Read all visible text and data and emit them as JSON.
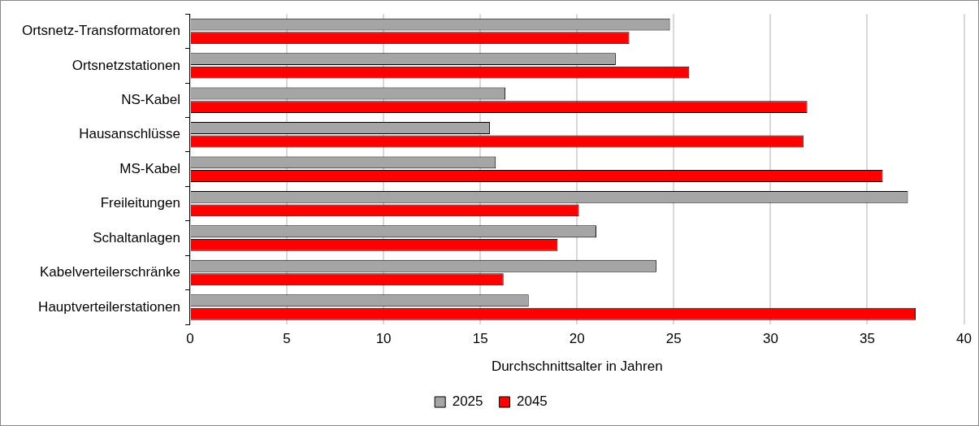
{
  "chart_data": {
    "type": "bar",
    "orientation": "horizontal",
    "xlabel": "Durchschnittsalter in Jahren",
    "categories": [
      "Ortsnetz-Transformatoren",
      "Ortsnetzstationen",
      "NS-Kabel",
      "Hausanschlüsse",
      "MS-Kabel",
      "Freileitungen",
      "Schaltanlagen",
      "Kabelverteilerschränke",
      "Hauptverteilerstationen"
    ],
    "series": [
      {
        "name": "2025",
        "color": "#a5a5a5",
        "values": [
          24.8,
          22.0,
          16.3,
          15.5,
          15.8,
          37.1,
          21.0,
          24.1,
          17.5
        ]
      },
      {
        "name": "2045",
        "color": "#ff0000",
        "values": [
          22.7,
          25.8,
          31.9,
          31.7,
          35.8,
          20.1,
          19.0,
          16.2,
          37.5
        ]
      }
    ],
    "xlim": [
      0,
      40
    ],
    "xticks": [
      0,
      5,
      10,
      15,
      20,
      25,
      30,
      35,
      40
    ],
    "grid": "x",
    "legend": "bottom"
  }
}
